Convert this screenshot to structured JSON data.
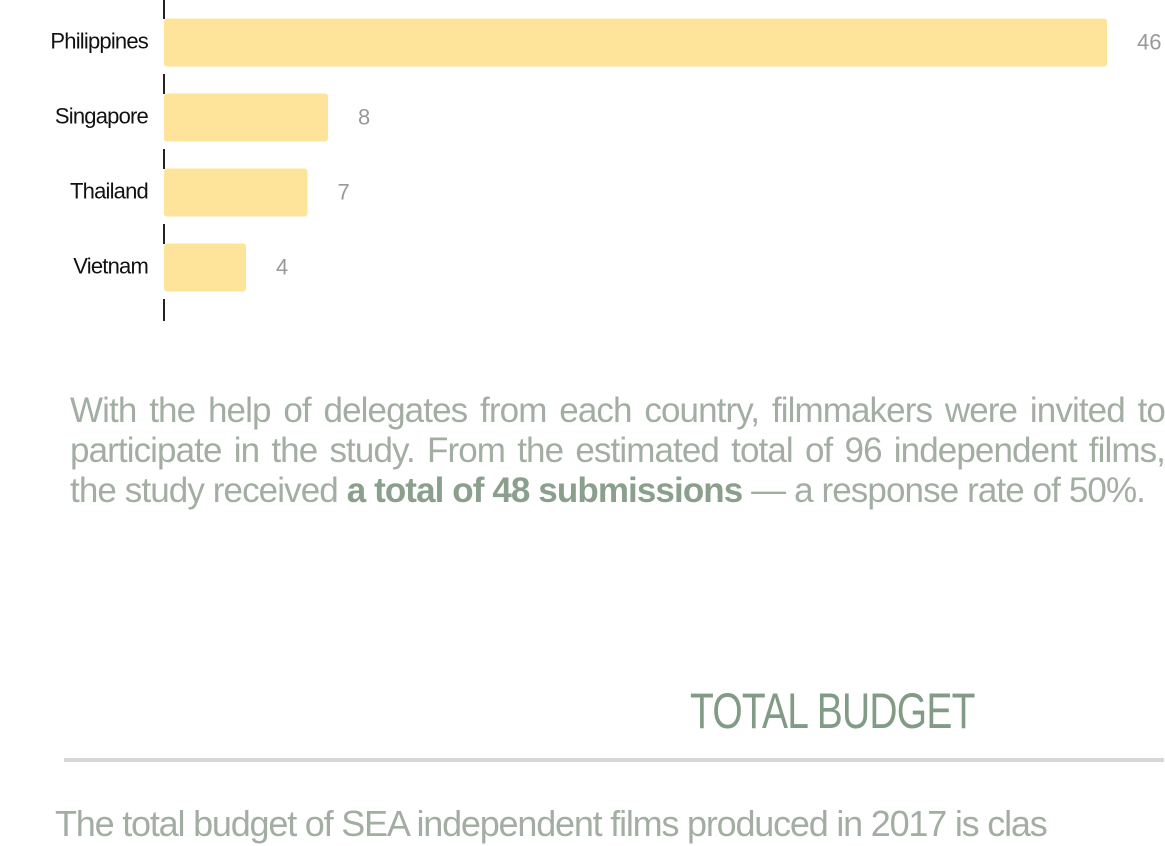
{
  "chart_data": {
    "type": "bar",
    "orientation": "horizontal",
    "categories": [
      "Philippines",
      "Singapore",
      "Thailand",
      "Vietnam"
    ],
    "values": [
      46,
      8,
      7,
      4
    ],
    "color": "#fde49a",
    "xlim": [
      0,
      48
    ]
  },
  "intro": {
    "before": "With the help of delegates from each country, filmmakers were invited to participate in the study. From the estimated total of 96 independent films, the study received ",
    "bold": "a total of 48 submissions",
    "after": " — a response rate of 50%."
  },
  "section": {
    "title": "TOTAL BUDGET",
    "text": "The total budget of SEA independent films produced in 2017 is clas"
  }
}
